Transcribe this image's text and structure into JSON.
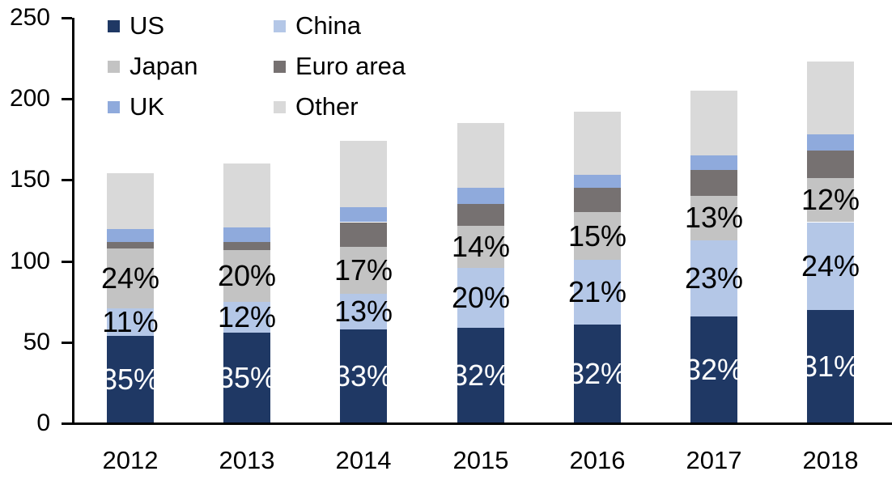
{
  "chart_data": {
    "type": "bar",
    "stacked": true,
    "title": "",
    "xlabel": "",
    "ylabel": "",
    "grid": false,
    "categories": [
      "2012",
      "2013",
      "2014",
      "2015",
      "2016",
      "2017",
      "2018"
    ],
    "series": [
      {
        "name": "US",
        "color": "#1F3864",
        "label_color": "#FFFFFF",
        "values": [
          54,
          56,
          58,
          59,
          61,
          66,
          70
        ],
        "labels": [
          "35%",
          "35%",
          "33%",
          "32%",
          "32%",
          "32%",
          "31%"
        ]
      },
      {
        "name": "China",
        "color": "#B4C7E7",
        "label_color": "#000000",
        "values": [
          17,
          19,
          22,
          37,
          40,
          47,
          54
        ],
        "labels": [
          "11%",
          "12%",
          "13%",
          "20%",
          "21%",
          "23%",
          "24%"
        ]
      },
      {
        "name": "Japan",
        "color": "#C3C3C3",
        "label_color": "#000000",
        "values": [
          37,
          32,
          29,
          26,
          29,
          27,
          27
        ],
        "labels": [
          "24%",
          "20%",
          "17%",
          "14%",
          "15%",
          "13%",
          "12%"
        ]
      },
      {
        "name": "Euro area",
        "color": "#767171",
        "label_color": null,
        "values": [
          4,
          5,
          15,
          13,
          15,
          16,
          17
        ],
        "labels": [
          null,
          null,
          null,
          null,
          null,
          null,
          null
        ]
      },
      {
        "name": "UK",
        "color": "#8FAADC",
        "label_color": null,
        "values": [
          8,
          9,
          9,
          10,
          8,
          9,
          10
        ],
        "labels": [
          null,
          null,
          null,
          null,
          null,
          null,
          null
        ]
      },
      {
        "name": "Other",
        "color": "#D9D9D9",
        "label_color": null,
        "values": [
          34,
          39,
          41,
          40,
          39,
          40,
          45
        ],
        "labels": [
          null,
          null,
          null,
          null,
          null,
          null,
          null
        ]
      }
    ],
    "totals_estimated": [
      154,
      160,
      174,
      185,
      192,
      205,
      223
    ],
    "y_axis": {
      "min": 0,
      "max": 250,
      "tick_interval": 50,
      "tick_labels": [
        "0",
        "50",
        "100",
        "150",
        "200",
        "250"
      ]
    },
    "legend": {
      "position": "top-left",
      "columns": 2,
      "order": [
        "US",
        "China",
        "Japan",
        "Euro area",
        "UK",
        "Other"
      ]
    }
  }
}
